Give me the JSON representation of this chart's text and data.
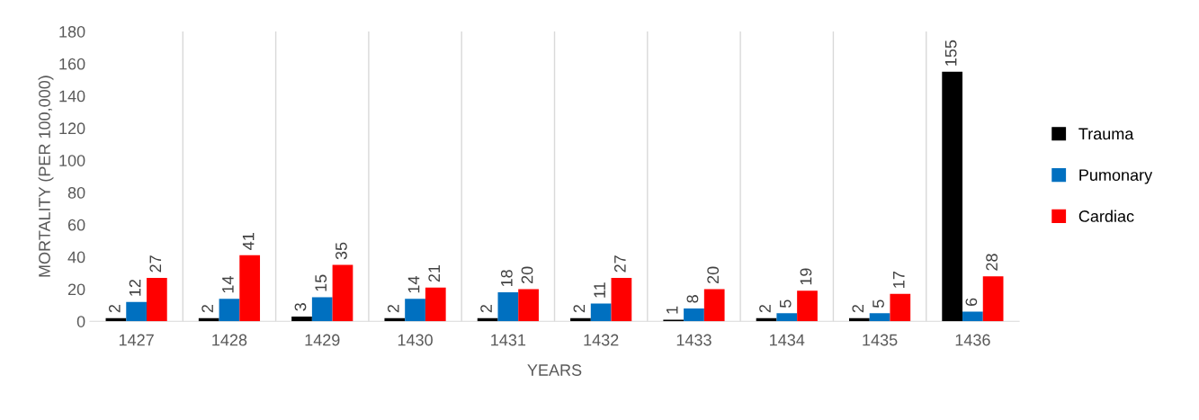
{
  "chart_data": {
    "type": "bar",
    "xlabel": "YEARS",
    "ylabel": "MORTALITY (PER 100,000)",
    "categories": [
      "1427",
      "1428",
      "1429",
      "1430",
      "1431",
      "1432",
      "1433",
      "1434",
      "1435",
      "1436"
    ],
    "series": [
      {
        "name": "Trauma",
        "color": "#000000",
        "values": [
          2,
          2,
          3,
          2,
          2,
          2,
          1,
          2,
          2,
          155
        ]
      },
      {
        "name": "Pumonary",
        "color": "#0070c0",
        "values": [
          12,
          14,
          15,
          14,
          18,
          11,
          8,
          5,
          5,
          6
        ]
      },
      {
        "name": "Cardiac",
        "color": "#ff0000",
        "values": [
          27,
          41,
          35,
          21,
          20,
          27,
          20,
          19,
          17,
          28
        ]
      }
    ],
    "ylim": [
      0,
      180
    ],
    "yticks": [
      0,
      20,
      40,
      60,
      80,
      100,
      120,
      140,
      160,
      180
    ],
    "grid": "x",
    "legend": "right",
    "data_labels": true
  }
}
